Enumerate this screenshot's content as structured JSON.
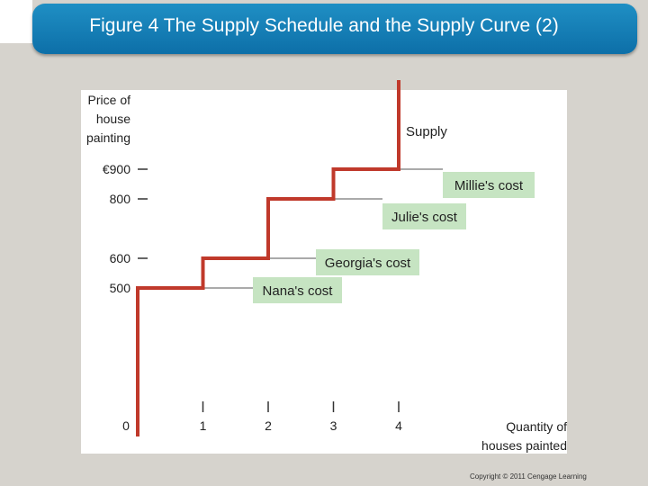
{
  "header": {
    "title": "Figure 4 The Supply Schedule and the Supply Curve (2)"
  },
  "footer": {
    "copyright": "Copyright © 2011 Cengage Learning"
  },
  "colors": {
    "header": "#1580b8",
    "supply_line": "#c0392b",
    "label_box": "#c6e4c2",
    "slide_bg": "#d6d3cd"
  },
  "chart_data": {
    "type": "line",
    "step": true,
    "ylabel": "Price of house painting",
    "xlabel": "Quantity of houses painted",
    "ytick_values": [
      500,
      600,
      800,
      900
    ],
    "ytick_labels": [
      "500",
      "600",
      "800",
      "€900"
    ],
    "xtick_values": [
      0,
      1,
      2,
      3,
      4
    ],
    "xtick_labels": [
      "0",
      "1",
      "2",
      "3",
      "4"
    ],
    "xlim": [
      0,
      6.5
    ],
    "ylim": [
      0,
      1250
    ],
    "series": [
      {
        "name": "Supply",
        "x": [
          0,
          0,
          1,
          1,
          2,
          2,
          3,
          3,
          4,
          4
        ],
        "y": [
          0,
          500,
          500,
          600,
          600,
          800,
          800,
          900,
          900,
          1200
        ]
      }
    ],
    "annotations": [
      {
        "text": "Nana's cost",
        "value": 500
      },
      {
        "text": "Georgia's cost",
        "value": 600
      },
      {
        "text": "Julie's cost",
        "value": 800
      },
      {
        "text": "Millie's cost",
        "value": 900
      }
    ],
    "grid": false,
    "legend": "none"
  }
}
